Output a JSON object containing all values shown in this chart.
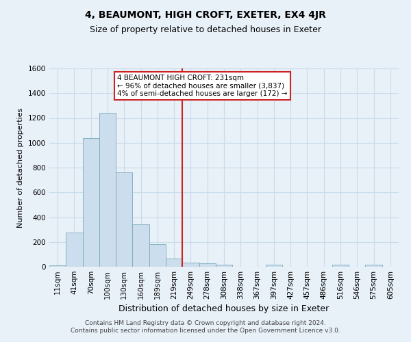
{
  "title": "4, BEAUMONT, HIGH CROFT, EXETER, EX4 4JR",
  "subtitle": "Size of property relative to detached houses in Exeter",
  "xlabel": "Distribution of detached houses by size in Exeter",
  "ylabel": "Number of detached properties",
  "footer_line1": "Contains HM Land Registry data © Crown copyright and database right 2024.",
  "footer_line2": "Contains public sector information licensed under the Open Government Licence v3.0.",
  "bins": [
    "11sqm",
    "41sqm",
    "70sqm",
    "100sqm",
    "130sqm",
    "160sqm",
    "189sqm",
    "219sqm",
    "249sqm",
    "278sqm",
    "308sqm",
    "338sqm",
    "367sqm",
    "397sqm",
    "427sqm",
    "457sqm",
    "486sqm",
    "516sqm",
    "546sqm",
    "575sqm",
    "605sqm"
  ],
  "bar_values": [
    10,
    275,
    1040,
    1240,
    760,
    340,
    180,
    65,
    35,
    30,
    15,
    0,
    0,
    15,
    0,
    0,
    0,
    15,
    0,
    15,
    0
  ],
  "bar_color": "#ccdded",
  "bar_edge_color": "#7aaabb",
  "grid_color": "#c8dcea",
  "background_color": "#e8f0f8",
  "vline_x_index": 7.5,
  "vline_color": "#cc2222",
  "annotation_text": "4 BEAUMONT HIGH CROFT: 231sqm\n← 96% of detached houses are smaller (3,837)\n4% of semi-detached houses are larger (172) →",
  "annotation_box_color": "#ffffff",
  "annotation_box_edge_color": "#cc2222",
  "ylim": [
    0,
    1600
  ],
  "yticks": [
    0,
    200,
    400,
    600,
    800,
    1000,
    1200,
    1400,
    1600
  ],
  "title_fontsize": 10,
  "subtitle_fontsize": 9,
  "ylabel_fontsize": 8,
  "xlabel_fontsize": 9,
  "footer_fontsize": 6.5,
  "tick_fontsize": 7.5
}
